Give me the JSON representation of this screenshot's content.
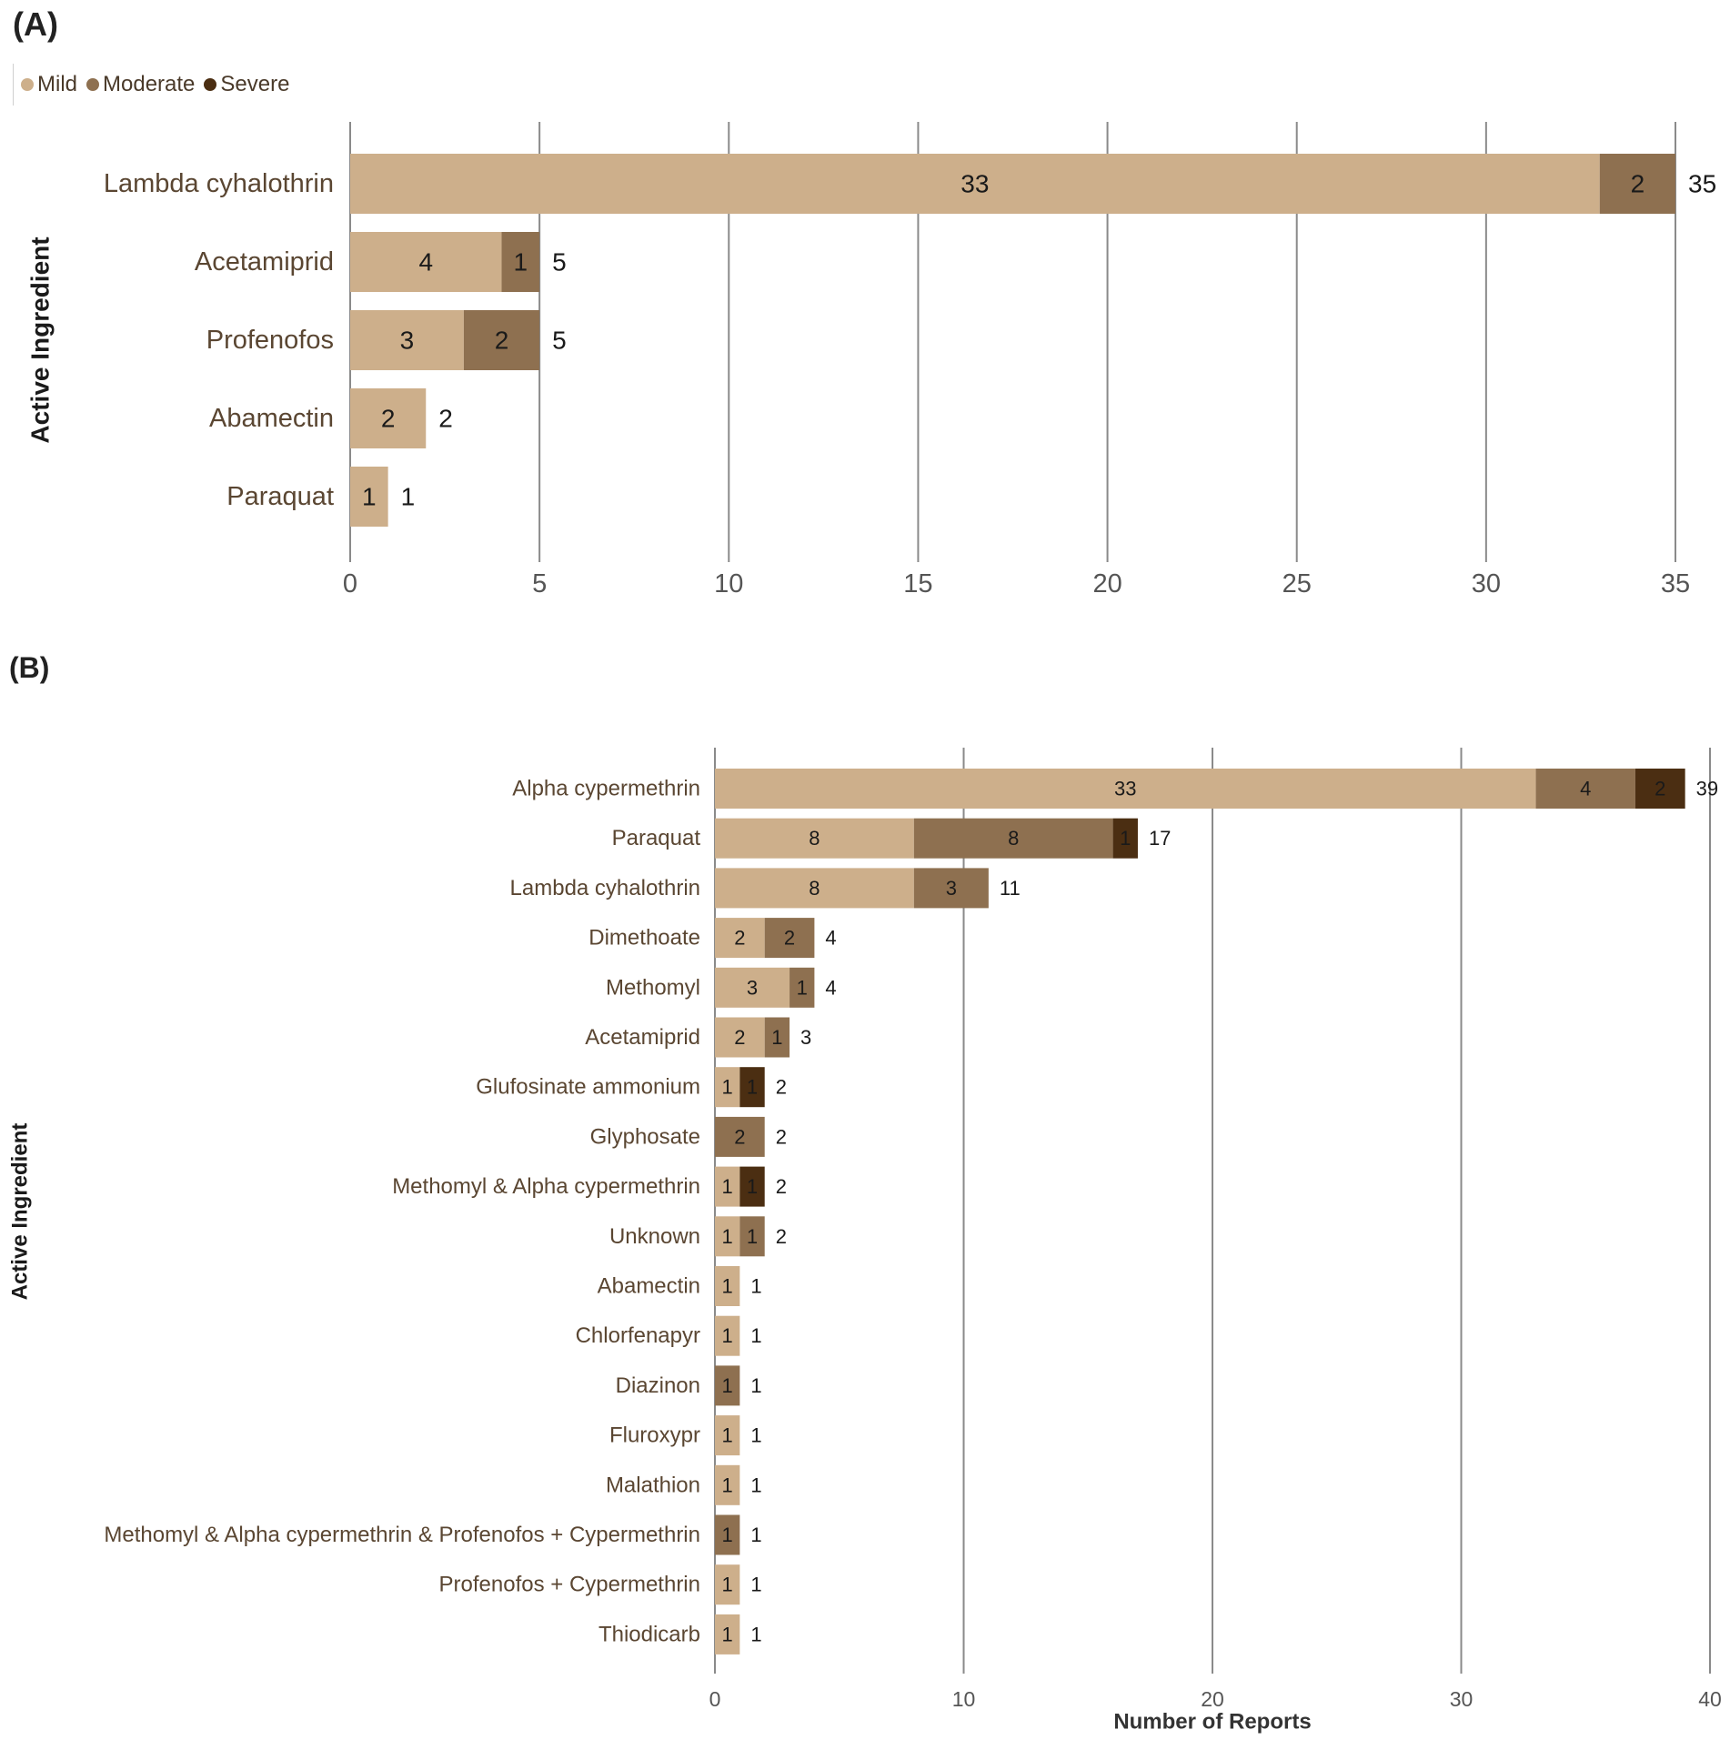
{
  "colors": {
    "mild": "#cdaf8b",
    "moderate": "#8e7050",
    "severe": "#4b2e12",
    "grid": "#8a8a8a",
    "label": "#5a4632",
    "text": "#1a1a1a"
  },
  "legend": [
    {
      "name": "Mild",
      "color_key": "mild"
    },
    {
      "name": "Moderate",
      "color_key": "moderate"
    },
    {
      "name": "Severe",
      "color_key": "severe"
    }
  ],
  "chart_data": [
    {
      "panel": "(A)",
      "type": "bar",
      "orientation": "horizontal",
      "stacked": true,
      "ylabel": "Active Ingredient",
      "xlabel": "",
      "xlim": [
        0,
        35
      ],
      "xticks": [
        0,
        5,
        10,
        15,
        20,
        25,
        30,
        35
      ],
      "categories": [
        "Lambda cyhalothrin",
        "Acetamiprid",
        "Profenofos",
        "Abamectin",
        "Paraquat"
      ],
      "series": [
        {
          "name": "Mild",
          "values": [
            33,
            4,
            3,
            2,
            1
          ]
        },
        {
          "name": "Moderate",
          "values": [
            2,
            1,
            2,
            0,
            0
          ]
        },
        {
          "name": "Severe",
          "values": [
            0,
            0,
            0,
            0,
            0
          ]
        }
      ],
      "totals": [
        35,
        5,
        5,
        2,
        1
      ]
    },
    {
      "panel": "(B)",
      "type": "bar",
      "orientation": "horizontal",
      "stacked": true,
      "ylabel": "Active Ingredient",
      "xlabel": "Number of Reports",
      "xlim": [
        0,
        40
      ],
      "xticks": [
        0,
        10,
        20,
        30,
        40
      ],
      "categories": [
        "Alpha cypermethrin",
        "Paraquat",
        "Lambda cyhalothrin",
        "Dimethoate",
        "Methomyl",
        "Acetamiprid",
        "Glufosinate ammonium",
        "Glyphosate",
        "Methomyl & Alpha cypermethrin",
        "Unknown",
        "Abamectin",
        "Chlorfenapyr",
        "Diazinon",
        "Fluroxypr",
        "Malathion",
        "Methomyl & Alpha cypermethrin & Profenofos + Cypermethrin",
        "Profenofos + Cypermethrin",
        "Thiodicarb"
      ],
      "series": [
        {
          "name": "Mild",
          "values": [
            33,
            8,
            8,
            2,
            3,
            2,
            1,
            0,
            1,
            1,
            1,
            1,
            0,
            1,
            1,
            0,
            1,
            1
          ]
        },
        {
          "name": "Moderate",
          "values": [
            4,
            8,
            3,
            2,
            1,
            1,
            0,
            2,
            0,
            1,
            0,
            0,
            1,
            0,
            0,
            1,
            0,
            0
          ]
        },
        {
          "name": "Severe",
          "values": [
            2,
            1,
            0,
            0,
            0,
            0,
            1,
            0,
            1,
            0,
            0,
            0,
            0,
            0,
            0,
            0,
            0,
            0
          ]
        }
      ],
      "totals": [
        39,
        17,
        11,
        4,
        4,
        3,
        2,
        2,
        2,
        2,
        1,
        1,
        1,
        1,
        1,
        1,
        1,
        1
      ]
    }
  ]
}
